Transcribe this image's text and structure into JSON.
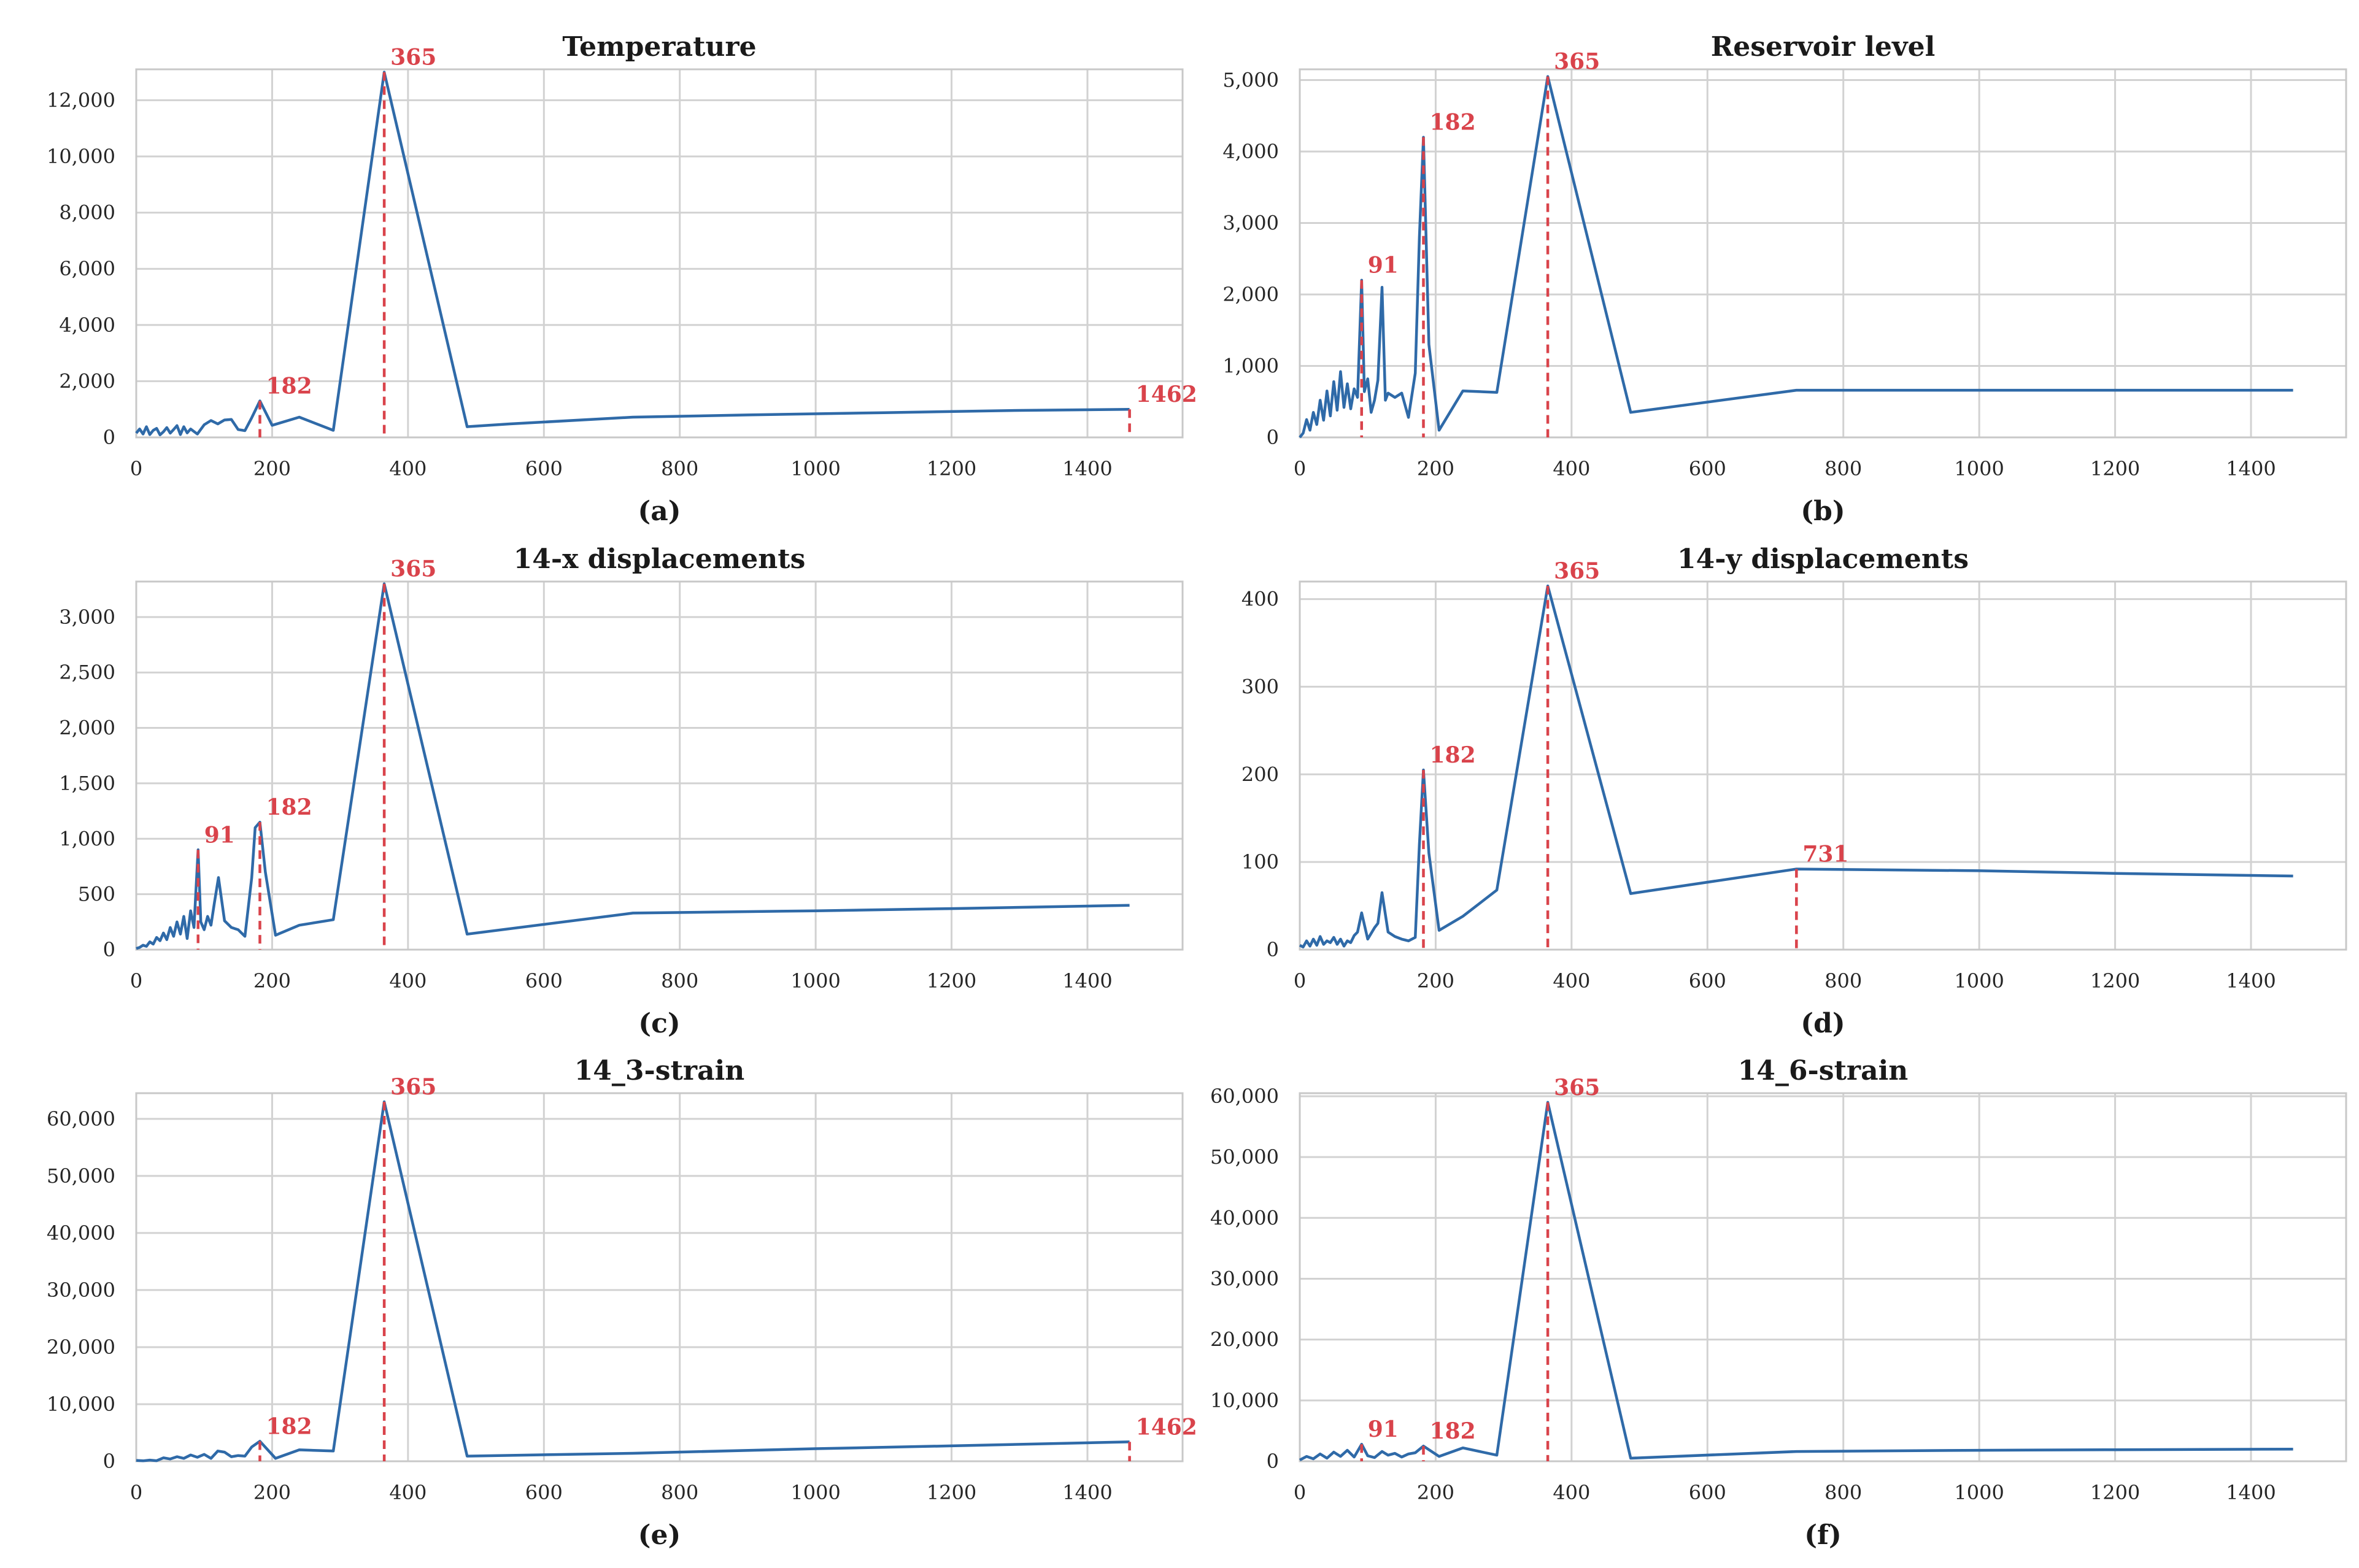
{
  "figure": {
    "line_color": "#2f6aa8",
    "marker_color": "#d9434b"
  },
  "chart_data": [
    {
      "id": "a",
      "type": "line",
      "title": "Temperature",
      "caption": "(a)",
      "xlabel": "",
      "ylabel": "",
      "xlim": [
        0,
        1540
      ],
      "ylim": [
        0,
        13100
      ],
      "xticks": [
        0,
        200,
        400,
        600,
        800,
        1000,
        1200,
        1400
      ],
      "yticks": [
        0,
        2000,
        4000,
        6000,
        8000,
        10000,
        12000
      ],
      "ytick_labels": [
        "0",
        "2,000",
        "4,000",
        "6,000",
        "8,000",
        "10,000",
        "12,000"
      ],
      "series": [
        {
          "name": "Temperature",
          "x": [
            0,
            5,
            10,
            15,
            20,
            25,
            30,
            35,
            40,
            45,
            50,
            55,
            60,
            65,
            70,
            75,
            80,
            90,
            100,
            110,
            120,
            130,
            140,
            150,
            160,
            170,
            182,
            200,
            240,
            290,
            365,
            487,
            550,
            731,
            900,
            1100,
            1300,
            1462
          ],
          "y": [
            150,
            300,
            120,
            380,
            100,
            250,
            320,
            90,
            200,
            350,
            150,
            280,
            420,
            100,
            380,
            160,
            300,
            120,
            450,
            600,
            480,
            620,
            640,
            280,
            240,
            700,
            1300,
            430,
            720,
            250,
            13000,
            380,
            480,
            720,
            800,
            880,
            960,
            1000
          ]
        }
      ],
      "peaks": [
        {
          "x": 182,
          "y": 1300,
          "label": "182"
        },
        {
          "x": 365,
          "y": 13000,
          "label": "365"
        },
        {
          "x": 1462,
          "y": 1000,
          "label": "1462"
        }
      ]
    },
    {
      "id": "b",
      "type": "line",
      "title": "Reservoir level",
      "caption": "(b)",
      "xlabel": "",
      "ylabel": "",
      "xlim": [
        0,
        1540
      ],
      "ylim": [
        0,
        5150
      ],
      "xticks": [
        0,
        200,
        400,
        600,
        800,
        1000,
        1200,
        1400
      ],
      "yticks": [
        0,
        1000,
        2000,
        3000,
        4000,
        5000
      ],
      "ytick_labels": [
        "0",
        "1,000",
        "2,000",
        "3,000",
        "4,000",
        "5,000"
      ],
      "series": [
        {
          "name": "Reservoir level",
          "x": [
            0,
            5,
            10,
            15,
            20,
            25,
            30,
            35,
            40,
            45,
            50,
            55,
            60,
            65,
            70,
            75,
            80,
            85,
            91,
            95,
            100,
            105,
            110,
            115,
            121,
            126,
            130,
            140,
            150,
            160,
            170,
            176,
            182,
            190,
            205,
            240,
            290,
            365,
            487,
            731,
            1000,
            1200,
            1462
          ],
          "y": [
            0,
            60,
            250,
            100,
            350,
            180,
            520,
            240,
            650,
            300,
            780,
            380,
            920,
            420,
            750,
            400,
            680,
            560,
            2200,
            640,
            820,
            350,
            520,
            800,
            2100,
            520,
            620,
            560,
            620,
            280,
            900,
            2800,
            4200,
            1300,
            100,
            650,
            630,
            5050,
            350,
            660,
            660,
            660,
            660
          ]
        }
      ],
      "peaks": [
        {
          "x": 91,
          "y": 2200,
          "label": "91"
        },
        {
          "x": 182,
          "y": 4200,
          "label": "182"
        },
        {
          "x": 365,
          "y": 5050,
          "label": "365"
        }
      ]
    },
    {
      "id": "c",
      "type": "line",
      "title": "14-x displacements",
      "caption": "(c)",
      "xlabel": "",
      "ylabel": "",
      "xlim": [
        0,
        1540
      ],
      "ylim": [
        0,
        3320
      ],
      "xticks": [
        0,
        200,
        400,
        600,
        800,
        1000,
        1200,
        1400
      ],
      "yticks": [
        0,
        500,
        1000,
        1500,
        2000,
        2500,
        3000
      ],
      "ytick_labels": [
        "0",
        "500",
        "1,000",
        "1,500",
        "2,000",
        "2,500",
        "3,000"
      ],
      "series": [
        {
          "name": "14-x displacements",
          "x": [
            0,
            5,
            10,
            15,
            20,
            25,
            30,
            35,
            40,
            45,
            50,
            55,
            60,
            65,
            70,
            75,
            80,
            85,
            91,
            95,
            100,
            105,
            110,
            115,
            121,
            130,
            140,
            150,
            160,
            170,
            175,
            182,
            190,
            205,
            240,
            290,
            365,
            487,
            731,
            1000,
            1200,
            1462
          ],
          "y": [
            10,
            20,
            40,
            30,
            70,
            50,
            110,
            80,
            150,
            90,
            200,
            120,
            250,
            140,
            300,
            100,
            350,
            200,
            900,
            250,
            180,
            300,
            220,
            420,
            650,
            260,
            200,
            180,
            120,
            650,
            1100,
            1150,
            700,
            130,
            220,
            270,
            3300,
            140,
            330,
            350,
            370,
            400
          ]
        }
      ],
      "peaks": [
        {
          "x": 91,
          "y": 900,
          "label": "91"
        },
        {
          "x": 182,
          "y": 1150,
          "label": "182"
        },
        {
          "x": 365,
          "y": 3300,
          "label": "365"
        }
      ]
    },
    {
      "id": "d",
      "type": "line",
      "title": "14-y displacements",
      "caption": "(d)",
      "xlabel": "",
      "ylabel": "",
      "xlim": [
        0,
        1540
      ],
      "ylim": [
        0,
        420
      ],
      "xticks": [
        0,
        200,
        400,
        600,
        800,
        1000,
        1200,
        1400
      ],
      "yticks": [
        0,
        100,
        200,
        300,
        400
      ],
      "ytick_labels": [
        "0",
        "100",
        "200",
        "300",
        "400"
      ],
      "series": [
        {
          "name": "14-y displacements",
          "x": [
            0,
            5,
            10,
            15,
            20,
            25,
            30,
            35,
            40,
            45,
            50,
            55,
            60,
            65,
            70,
            75,
            80,
            85,
            91,
            100,
            110,
            115,
            121,
            130,
            140,
            150,
            160,
            170,
            176,
            182,
            190,
            205,
            240,
            290,
            365,
            487,
            731,
            1000,
            1200,
            1462
          ],
          "y": [
            5,
            3,
            10,
            4,
            12,
            5,
            15,
            6,
            10,
            8,
            14,
            6,
            12,
            4,
            10,
            8,
            16,
            20,
            42,
            12,
            25,
            30,
            65,
            20,
            15,
            12,
            10,
            14,
            120,
            205,
            110,
            22,
            38,
            68,
            415,
            64,
            92,
            90,
            87,
            84
          ]
        }
      ],
      "peaks": [
        {
          "x": 182,
          "y": 205,
          "label": "182"
        },
        {
          "x": 365,
          "y": 415,
          "label": "365"
        },
        {
          "x": 731,
          "y": 92,
          "label": "731"
        }
      ]
    },
    {
      "id": "e",
      "type": "line",
      "title": "14_3-strain",
      "caption": "(e)",
      "xlabel": "",
      "ylabel": "",
      "xlim": [
        0,
        1540
      ],
      "ylim": [
        0,
        64500
      ],
      "xticks": [
        0,
        200,
        400,
        600,
        800,
        1000,
        1200,
        1400
      ],
      "yticks": [
        0,
        10000,
        20000,
        30000,
        40000,
        50000,
        60000
      ],
      "ytick_labels": [
        "0",
        "10,000",
        "20,000",
        "30,000",
        "40,000",
        "50,000",
        "60,000"
      ],
      "series": [
        {
          "name": "14_3-strain",
          "x": [
            0,
            10,
            20,
            30,
            40,
            50,
            60,
            70,
            80,
            90,
            100,
            110,
            120,
            130,
            140,
            150,
            160,
            170,
            182,
            205,
            240,
            290,
            365,
            487,
            731,
            1000,
            1200,
            1462
          ],
          "y": [
            150,
            80,
            200,
            100,
            600,
            400,
            800,
            500,
            1100,
            700,
            1200,
            500,
            1800,
            1600,
            800,
            1000,
            900,
            2500,
            3500,
            500,
            2000,
            1800,
            63000,
            900,
            1400,
            2200,
            2700,
            3400
          ]
        }
      ],
      "peaks": [
        {
          "x": 182,
          "y": 3500,
          "label": "182"
        },
        {
          "x": 365,
          "y": 63000,
          "label": "365"
        },
        {
          "x": 1462,
          "y": 3400,
          "label": "1462"
        }
      ]
    },
    {
      "id": "f",
      "type": "line",
      "title": "14_6-strain",
      "caption": "(f)",
      "xlabel": "",
      "ylabel": "",
      "xlim": [
        0,
        1540
      ],
      "ylim": [
        0,
        60500
      ],
      "xticks": [
        0,
        200,
        400,
        600,
        800,
        1000,
        1200,
        1400
      ],
      "yticks": [
        0,
        10000,
        20000,
        30000,
        40000,
        50000,
        60000
      ],
      "ytick_labels": [
        "0",
        "10,000",
        "20,000",
        "30,000",
        "40,000",
        "50,000",
        "60,000"
      ],
      "series": [
        {
          "name": "14_6-strain",
          "x": [
            0,
            10,
            20,
            30,
            40,
            50,
            60,
            70,
            80,
            91,
            100,
            110,
            121,
            130,
            140,
            150,
            160,
            170,
            182,
            205,
            240,
            290,
            365,
            487,
            731,
            1000,
            1200,
            1462
          ],
          "y": [
            200,
            800,
            400,
            1200,
            500,
            1500,
            800,
            1800,
            700,
            2800,
            900,
            600,
            1600,
            1000,
            1300,
            700,
            1200,
            1400,
            2500,
            800,
            2200,
            1000,
            59000,
            500,
            1600,
            1800,
            1900,
            2000
          ]
        }
      ],
      "peaks": [
        {
          "x": 91,
          "y": 2800,
          "label": "91"
        },
        {
          "x": 182,
          "y": 2500,
          "label": "182"
        },
        {
          "x": 365,
          "y": 59000,
          "label": "365"
        }
      ]
    }
  ]
}
